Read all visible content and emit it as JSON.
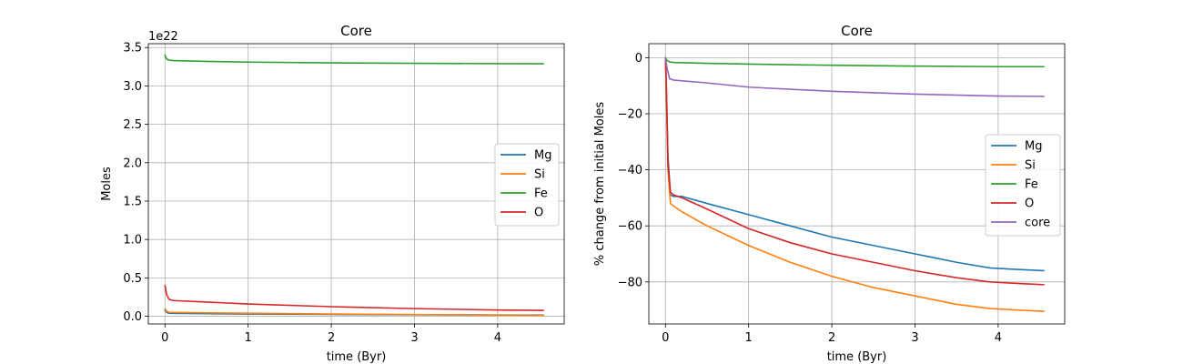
{
  "chart_data": [
    {
      "type": "line",
      "title": "Core",
      "xlabel": "time (Byr)",
      "ylabel": "Moles",
      "offset_text": "1e22",
      "xlim": [
        -0.2,
        4.8
      ],
      "ylim": [
        -0.1,
        3.55
      ],
      "xticks": [
        0,
        1,
        2,
        3,
        4
      ],
      "xtick_labels": [
        "0",
        "1",
        "2",
        "3",
        "4"
      ],
      "yticks": [
        0.0,
        0.5,
        1.0,
        1.5,
        2.0,
        2.5,
        3.0,
        3.5
      ],
      "ytick_labels": [
        "0.0",
        "0.5",
        "1.0",
        "1.5",
        "2.0",
        "2.5",
        "3.0",
        "3.5"
      ],
      "grid": true,
      "legend_position": "right",
      "series": [
        {
          "name": "Mg",
          "color": "#1f77b4",
          "x": [
            0,
            0.02,
            0.05,
            0.1,
            0.5,
            1,
            2,
            3,
            4,
            4.55
          ],
          "y": [
            0.08,
            0.05,
            0.04,
            0.038,
            0.034,
            0.03,
            0.025,
            0.021,
            0.017,
            0.016
          ]
        },
        {
          "name": "Si",
          "color": "#ff7f0e",
          "x": [
            0,
            0.02,
            0.05,
            0.1,
            0.5,
            1,
            2,
            3,
            4,
            4.55
          ],
          "y": [
            0.1,
            0.065,
            0.052,
            0.05,
            0.045,
            0.04,
            0.03,
            0.022,
            0.016,
            0.014
          ]
        },
        {
          "name": "Fe",
          "color": "#2ca02c",
          "x": [
            0,
            0.02,
            0.05,
            0.1,
            0.5,
            1,
            2,
            3,
            4,
            4.55
          ],
          "y": [
            3.4,
            3.35,
            3.335,
            3.33,
            3.32,
            3.31,
            3.3,
            3.295,
            3.29,
            3.288
          ]
        },
        {
          "name": "O",
          "color": "#d62728",
          "x": [
            0,
            0.02,
            0.05,
            0.1,
            0.5,
            1,
            2,
            3,
            4,
            4.55
          ],
          "y": [
            0.4,
            0.28,
            0.22,
            0.205,
            0.185,
            0.16,
            0.125,
            0.1,
            0.082,
            0.077
          ]
        }
      ]
    },
    {
      "type": "line",
      "title": "Core",
      "xlabel": "time (Byr)",
      "ylabel": "% change from initial Moles",
      "xlim": [
        -0.2,
        4.8
      ],
      "ylim": [
        -95,
        5
      ],
      "xticks": [
        0,
        1,
        2,
        3,
        4
      ],
      "xtick_labels": [
        "0",
        "1",
        "2",
        "3",
        "4"
      ],
      "yticks": [
        0,
        -20,
        -40,
        -60,
        -80
      ],
      "ytick_labels": [
        "0",
        "−20",
        "−40",
        "−60",
        "−80"
      ],
      "grid": true,
      "legend_position": "right",
      "series": [
        {
          "name": "Mg",
          "color": "#1f77b4",
          "x": [
            0,
            0.01,
            0.03,
            0.06,
            0.1,
            0.2,
            0.5,
            1,
            1.5,
            2,
            2.5,
            3,
            3.5,
            3.9,
            4.2,
            4.55
          ],
          "y": [
            0,
            -8,
            -35,
            -49,
            -49.5,
            -49.5,
            -52,
            -56,
            -60,
            -64,
            -67,
            -70,
            -73,
            -75,
            -75.5,
            -76
          ]
        },
        {
          "name": "Si",
          "color": "#ff7f0e",
          "x": [
            0,
            0.01,
            0.03,
            0.06,
            0.1,
            0.2,
            0.5,
            1,
            1.5,
            2,
            2.5,
            3,
            3.5,
            3.9,
            4.2,
            4.55
          ],
          "y": [
            0,
            -12,
            -40,
            -52,
            -53,
            -55,
            -60,
            -67,
            -73,
            -78,
            -82,
            -85,
            -88,
            -89.5,
            -90,
            -90.5
          ]
        },
        {
          "name": "Fe",
          "color": "#2ca02c",
          "x": [
            0,
            0.02,
            0.05,
            0.1,
            0.5,
            1,
            2,
            3,
            4,
            4.55
          ],
          "y": [
            0,
            -1,
            -1.5,
            -1.7,
            -2,
            -2.3,
            -2.7,
            -3,
            -3.2,
            -3.2
          ]
        },
        {
          "name": "O",
          "color": "#d62728",
          "x": [
            0,
            0.01,
            0.03,
            0.06,
            0.1,
            0.2,
            0.5,
            1,
            1.5,
            2,
            2.5,
            3,
            3.5,
            3.9,
            4.2,
            4.55
          ],
          "y": [
            0,
            -10,
            -38,
            -48,
            -49,
            -50,
            -54,
            -61,
            -66,
            -70,
            -73,
            -76,
            -78.5,
            -80,
            -80.5,
            -81
          ]
        },
        {
          "name": "core",
          "color": "#9467bd",
          "x": [
            0,
            0.02,
            0.05,
            0.1,
            0.5,
            1,
            2,
            3,
            4,
            4.55
          ],
          "y": [
            0,
            -4,
            -7.5,
            -8,
            -9,
            -10.5,
            -12,
            -13,
            -13.7,
            -13.8
          ]
        }
      ]
    }
  ]
}
